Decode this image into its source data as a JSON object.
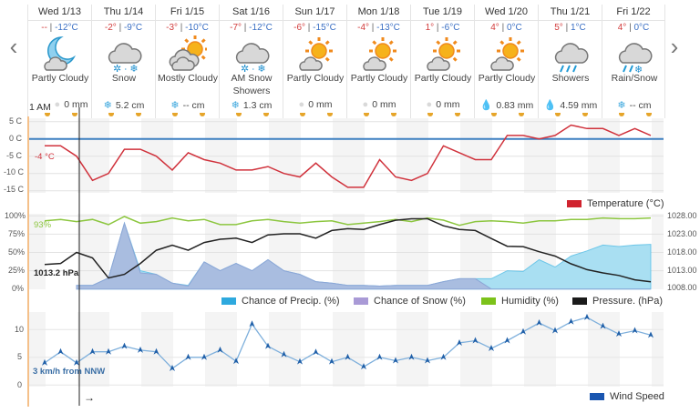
{
  "nav": {
    "prev": "‹",
    "next": "›"
  },
  "days": [
    {
      "day": "Wed 1/13",
      "high": "--",
      "low": "-12°C",
      "condition": "Partly Cloudy",
      "icon": "moon-cloud",
      "precip": "0 mm",
      "precip_icon": "none"
    },
    {
      "day": "Thu 1/14",
      "high": "-2°",
      "low": "-9°C",
      "condition": "Snow",
      "icon": "snow",
      "precip": "5.2 cm",
      "precip_icon": "snowflake"
    },
    {
      "day": "Fri 1/15",
      "high": "-3°",
      "low": "-10°C",
      "condition": "Mostly Cloudy",
      "icon": "mostly-cloudy",
      "precip": "-- cm",
      "precip_icon": "snowflake"
    },
    {
      "day": "Sat 1/16",
      "high": "-7°",
      "low": "-12°C",
      "condition": "AM Snow Showers",
      "icon": "snow",
      "precip": "1.3 cm",
      "precip_icon": "snowflake"
    },
    {
      "day": "Sun 1/17",
      "high": "-6°",
      "low": "-15°C",
      "condition": "Partly Cloudy",
      "icon": "sun-cloud",
      "precip": "0 mm",
      "precip_icon": "none"
    },
    {
      "day": "Mon 1/18",
      "high": "-4°",
      "low": "-13°C",
      "condition": "Partly Cloudy",
      "icon": "sun-cloud",
      "precip": "0 mm",
      "precip_icon": "none"
    },
    {
      "day": "Tue 1/19",
      "high": "1°",
      "low": "-6°C",
      "condition": "Partly Cloudy",
      "icon": "sun-cloud",
      "precip": "0 mm",
      "precip_icon": "none"
    },
    {
      "day": "Wed 1/20",
      "high": "4°",
      "low": "0°C",
      "condition": "Partly Cloudy",
      "icon": "sun-cloud",
      "precip": "0.83 mm",
      "precip_icon": "drop"
    },
    {
      "day": "Thu 1/21",
      "high": "5°",
      "low": "1°C",
      "condition": "Showers",
      "icon": "rain",
      "precip": "4.59 mm",
      "precip_icon": "drop"
    },
    {
      "day": "Fri 1/22",
      "high": "4°",
      "low": "0°C",
      "condition": "Rain/Snow",
      "icon": "rain-snow",
      "precip": "-- cm",
      "precip_icon": "snowflake"
    }
  ],
  "cursor": {
    "time_label": "1 AM",
    "temp_label": "-4 °C",
    "humidity_label": "93%",
    "pressure_label": "1013.2 hPa",
    "wind_label": "3 km/h from NNW",
    "wind_arrow": "→"
  },
  "colors": {
    "temperature": "#d0323c",
    "zero_line": "#3c7fc0",
    "precip": "#48b8e0",
    "snow": "#8da6d6",
    "humidity": "#8cc63f",
    "pressure": "#222222",
    "wind": "#1f5fa8",
    "now_line": "#f5c08a"
  },
  "chart_data": [
    {
      "type": "line",
      "x_start": "1/13 12:00",
      "step_hours": 6,
      "yticks": [
        "5 C",
        "0 C",
        "-5 C",
        "-10 C",
        "-15 C"
      ],
      "ylim": [
        -15,
        5
      ],
      "legend": "Temperature (°C)",
      "series": [
        {
          "name": "Temperature (°C)",
          "values": [
            -2,
            -2,
            -5,
            -12,
            -10,
            -3,
            -3,
            -5,
            -9,
            -4,
            -6,
            -7,
            -9,
            -9,
            -8,
            -10,
            -11,
            -7,
            -11,
            -14,
            -14,
            -6,
            -11,
            -12,
            -10,
            -2,
            -4,
            -6,
            -6,
            1,
            1,
            0,
            1,
            4,
            3,
            3,
            1,
            3,
            1
          ]
        }
      ]
    },
    {
      "type": "area+line",
      "x_start": "1/13 12:00",
      "step_hours": 6,
      "yticks_left": [
        "100%",
        "75%",
        "50%",
        "25%",
        "0%"
      ],
      "yticks_right": [
        "1028.00",
        "1023.00",
        "1018.00",
        "1013.00",
        "1008.00"
      ],
      "ylim_left": [
        0,
        100
      ],
      "ylim_right": [
        1008,
        1028
      ],
      "series": [
        {
          "name": "Chance of Precip. (%)",
          "values": [
            null,
            null,
            5,
            5,
            15,
            90,
            25,
            20,
            8,
            5,
            37,
            25,
            35,
            25,
            40,
            25,
            20,
            10,
            8,
            5,
            5,
            4,
            5,
            5,
            5,
            10,
            14,
            14,
            14,
            25,
            24,
            40,
            30,
            45,
            52,
            60,
            58,
            60,
            61
          ]
        },
        {
          "name": "Chance of Snow (%)",
          "values": [
            null,
            null,
            5,
            5,
            15,
            90,
            22,
            20,
            8,
            4,
            37,
            25,
            35,
            25,
            40,
            25,
            20,
            10,
            8,
            5,
            5,
            4,
            5,
            5,
            5,
            10,
            14,
            14,
            0,
            0,
            0,
            0,
            0,
            0,
            0,
            0,
            0,
            0,
            0
          ]
        },
        {
          "name": "Humidity (%)",
          "values": [
            93,
            95,
            92,
            95,
            88,
            99,
            90,
            92,
            97,
            93,
            95,
            88,
            88,
            93,
            95,
            92,
            90,
            92,
            93,
            88,
            90,
            92,
            95,
            92,
            97,
            94,
            87,
            92,
            93,
            92,
            90,
            93,
            93,
            95,
            95,
            97,
            96,
            96,
            97
          ]
        },
        {
          "name": "Pressure. (hPa)",
          "axis": "right",
          "values": [
            1014.7,
            1015,
            1018,
            1016.5,
            1011,
            1012,
            1015,
            1018.6,
            1020,
            1018.6,
            1020.7,
            1021.6,
            1021.9,
            1020.7,
            1022.8,
            1023.1,
            1023.1,
            1021.9,
            1024,
            1024.5,
            1024.3,
            1025.6,
            1026.8,
            1027.2,
            1027.2,
            1025.3,
            1024.3,
            1024,
            1021.8,
            1019.7,
            1019.6,
            1018.2,
            1017,
            1014.9,
            1013.3,
            1012.4,
            1011.7,
            1010.5,
            1010
          ]
        }
      ]
    },
    {
      "type": "line",
      "x_start": "1/13 12:00",
      "step_hours": 6,
      "yticks": [
        "10",
        "5",
        "0"
      ],
      "ylim": [
        -1,
        13
      ],
      "legend": "Wind Speed",
      "series": [
        {
          "name": "Wind Speed",
          "values": [
            4,
            6,
            4,
            6,
            6,
            7,
            6.3,
            6,
            3,
            5,
            5,
            6.3,
            4.3,
            11,
            7,
            5.5,
            4.2,
            5.9,
            4.2,
            5,
            3.3,
            5,
            4.4,
            5,
            4.4,
            5,
            7.6,
            8,
            6.6,
            8,
            9.6,
            11.2,
            9.8,
            11.4,
            12.2,
            10.6,
            9.2,
            9.8,
            9
          ]
        }
      ]
    }
  ]
}
